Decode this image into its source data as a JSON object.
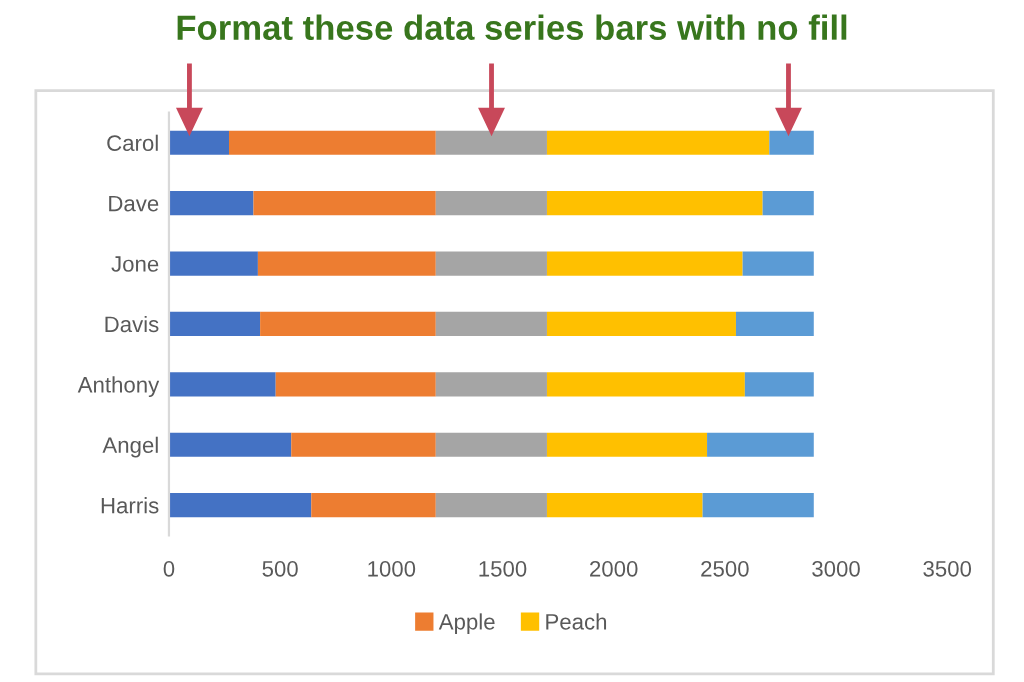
{
  "chart_data": {
    "type": "bar",
    "orientation": "horizontal",
    "stacked": true,
    "title": "Format these data series bars with no fill",
    "categories": [
      "Carol",
      "Dave",
      "Jone",
      "Davis",
      "Anthony",
      "Angel",
      "Harris"
    ],
    "series": [
      {
        "color": "#4472c4",
        "values": [
          270,
          380,
          400,
          410,
          480,
          550,
          640
        ]
      },
      {
        "name": "Apple",
        "color": "#ed7d31",
        "values": [
          930,
          820,
          800,
          790,
          720,
          650,
          560
        ]
      },
      {
        "color": "#a5a5a5",
        "values": [
          500,
          500,
          500,
          500,
          500,
          500,
          500
        ]
      },
      {
        "name": "Peach",
        "color": "#ffc000",
        "values": [
          1000,
          970,
          880,
          850,
          890,
          720,
          700
        ]
      },
      {
        "color": "#5b9bd5",
        "values": [
          200,
          230,
          320,
          350,
          310,
          480,
          500
        ]
      }
    ],
    "xlim": [
      0,
      3500
    ],
    "xticks": [
      0,
      500,
      1000,
      1500,
      2000,
      2500,
      3000,
      3500
    ],
    "grid": false,
    "legend": "bottom"
  }
}
